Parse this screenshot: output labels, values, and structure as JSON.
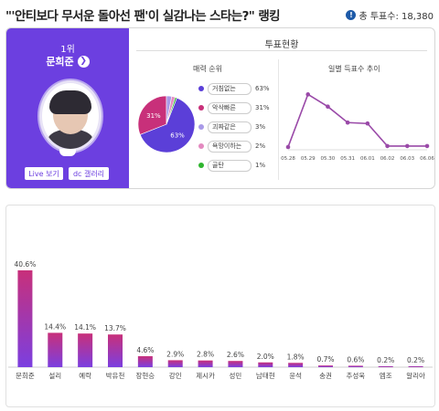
{
  "header": {
    "title": "\"'안티보다 무서운 돌아선 팬'이 실감나는 스타는?\" 랭킹",
    "total_votes": "총 투표수: 18,380"
  },
  "profile": {
    "rank": "1위",
    "name": "문희준",
    "live_button": "Live 보기",
    "gallery_button": "dc 갤러리"
  },
  "stats": {
    "title": "투표현황",
    "pie_title": "매력 순위",
    "line_title": "일별 득표수 추이",
    "legend": [
      {
        "label": "거침없는",
        "pct": "63%",
        "color": "#5b3fd8"
      },
      {
        "label": "악삭빠른",
        "pct": "31%",
        "color": "#c8307a"
      },
      {
        "label": "괴짜같은",
        "pct": "3%",
        "color": "#a99ae8"
      },
      {
        "label": "욕망이하는",
        "pct": "2%",
        "color": "#e38ac0"
      },
      {
        "label": "골탄",
        "pct": "1%",
        "color": "#2fb52f"
      }
    ]
  },
  "chart_data": [
    {
      "type": "pie",
      "title": "매력 순위",
      "categories": [
        "거침없는",
        "악삭빠른",
        "괴짜같은",
        "욕망이하는",
        "골탄"
      ],
      "values": [
        63,
        31,
        3,
        2,
        1
      ],
      "slice_labels": [
        "63%",
        "31%",
        "",
        "",
        ""
      ]
    },
    {
      "type": "line",
      "title": "일별 득표수 추이",
      "x": [
        "05.28",
        "05.29",
        "05.30",
        "05.31",
        "06.01",
        "06.02",
        "06.03",
        "06.06"
      ],
      "values": [
        2,
        58,
        45,
        28,
        27,
        3,
        3,
        3
      ],
      "ylim": [
        0,
        70
      ]
    },
    {
      "type": "bar",
      "categories": [
        "문희준",
        "설리",
        "예락",
        "박유천",
        "장현승",
        "강인",
        "제시카",
        "성민",
        "남태현",
        "윤석",
        "송권",
        "추성욱",
        "엠조",
        "알리아"
      ],
      "values": [
        40.6,
        14.4,
        14.1,
        13.7,
        4.6,
        2.9,
        2.8,
        2.6,
        2.0,
        1.8,
        0.7,
        0.6,
        0.2,
        0.2
      ],
      "labels": [
        "40.6%",
        "14.4%",
        "14.1%",
        "13.7%",
        "4.6%",
        "2.9%",
        "2.8%",
        "2.6%",
        "2.0%",
        "1.8%",
        "0.7%",
        "0.6%",
        "0.2%",
        "0.2%"
      ],
      "ylim": [
        0,
        40.6
      ]
    }
  ],
  "colors": {
    "accent": "#6c3fe0",
    "bar_top": "#c8307a",
    "bar_bottom": "#7b3fe0",
    "line": "#9a4aa8"
  }
}
